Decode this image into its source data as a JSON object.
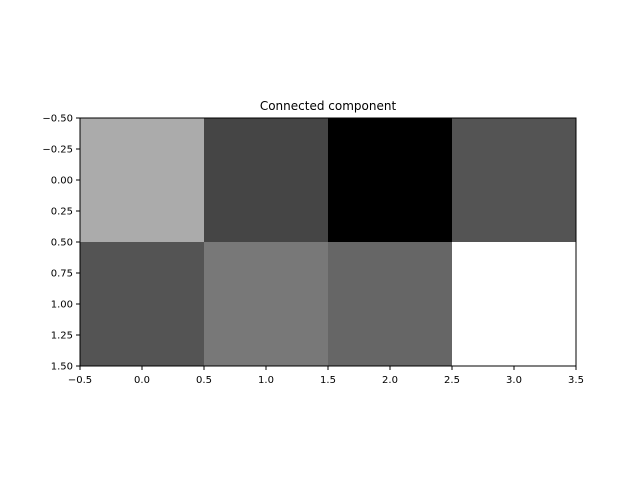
{
  "chart_data": {
    "type": "heatmap",
    "title": "Connected component",
    "xlabel": "",
    "ylabel": "",
    "colormap": "gray",
    "x_range": [
      -0.5,
      3.5
    ],
    "y_range": [
      -0.5,
      1.5
    ],
    "y_inverted": true,
    "x_ticks": [
      -0.5,
      0.0,
      0.5,
      1.0,
      1.5,
      2.0,
      2.5,
      3.0,
      3.5
    ],
    "x_tick_labels": [
      "−0.5",
      "0.0",
      "0.5",
      "1.0",
      "1.5",
      "2.0",
      "2.5",
      "3.0",
      "3.5"
    ],
    "y_ticks": [
      -0.5,
      -0.25,
      0.0,
      0.25,
      0.5,
      0.75,
      1.0,
      1.25,
      1.5
    ],
    "y_tick_labels": [
      "−0.50",
      "−0.25",
      "0.00",
      "0.25",
      "0.50",
      "0.75",
      "1.00",
      "1.25",
      "1.50"
    ],
    "grid": false,
    "intensity": [
      [
        0.67,
        0.27,
        0.0,
        0.33
      ],
      [
        0.33,
        0.47,
        0.4,
        1.0
      ]
    ]
  }
}
